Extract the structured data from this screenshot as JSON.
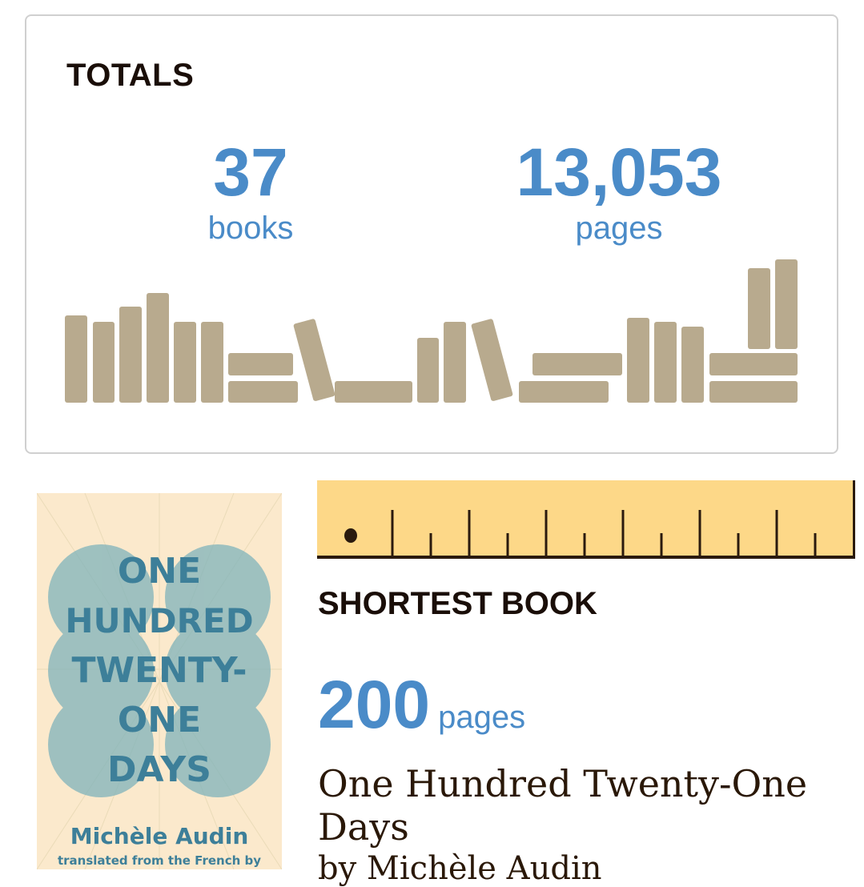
{
  "totals": {
    "title": "TOTALS",
    "books_count": "37",
    "books_label": "books",
    "pages_count": "13,053",
    "pages_label": "pages"
  },
  "shortest_book": {
    "title": "SHORTEST BOOK",
    "pages_count": "200",
    "pages_label": "pages",
    "book_title": "One Hundred Twenty-One Days",
    "author_line": "by Michèle Audin",
    "cover": {
      "title_lines": [
        "ONE",
        "HUNDRED",
        "TWENTY-",
        "ONE",
        "DAYS"
      ],
      "author": "Michèle Audin",
      "subtitle": "translated from the French by"
    }
  },
  "colors": {
    "accent": "#4a8bc8",
    "book_spine": "#b8aa8e",
    "ruler": "#fdd888",
    "text": "#1a0e08",
    "cover_bg": "#fbe9cc",
    "cover_ink": "#3d7f99"
  }
}
